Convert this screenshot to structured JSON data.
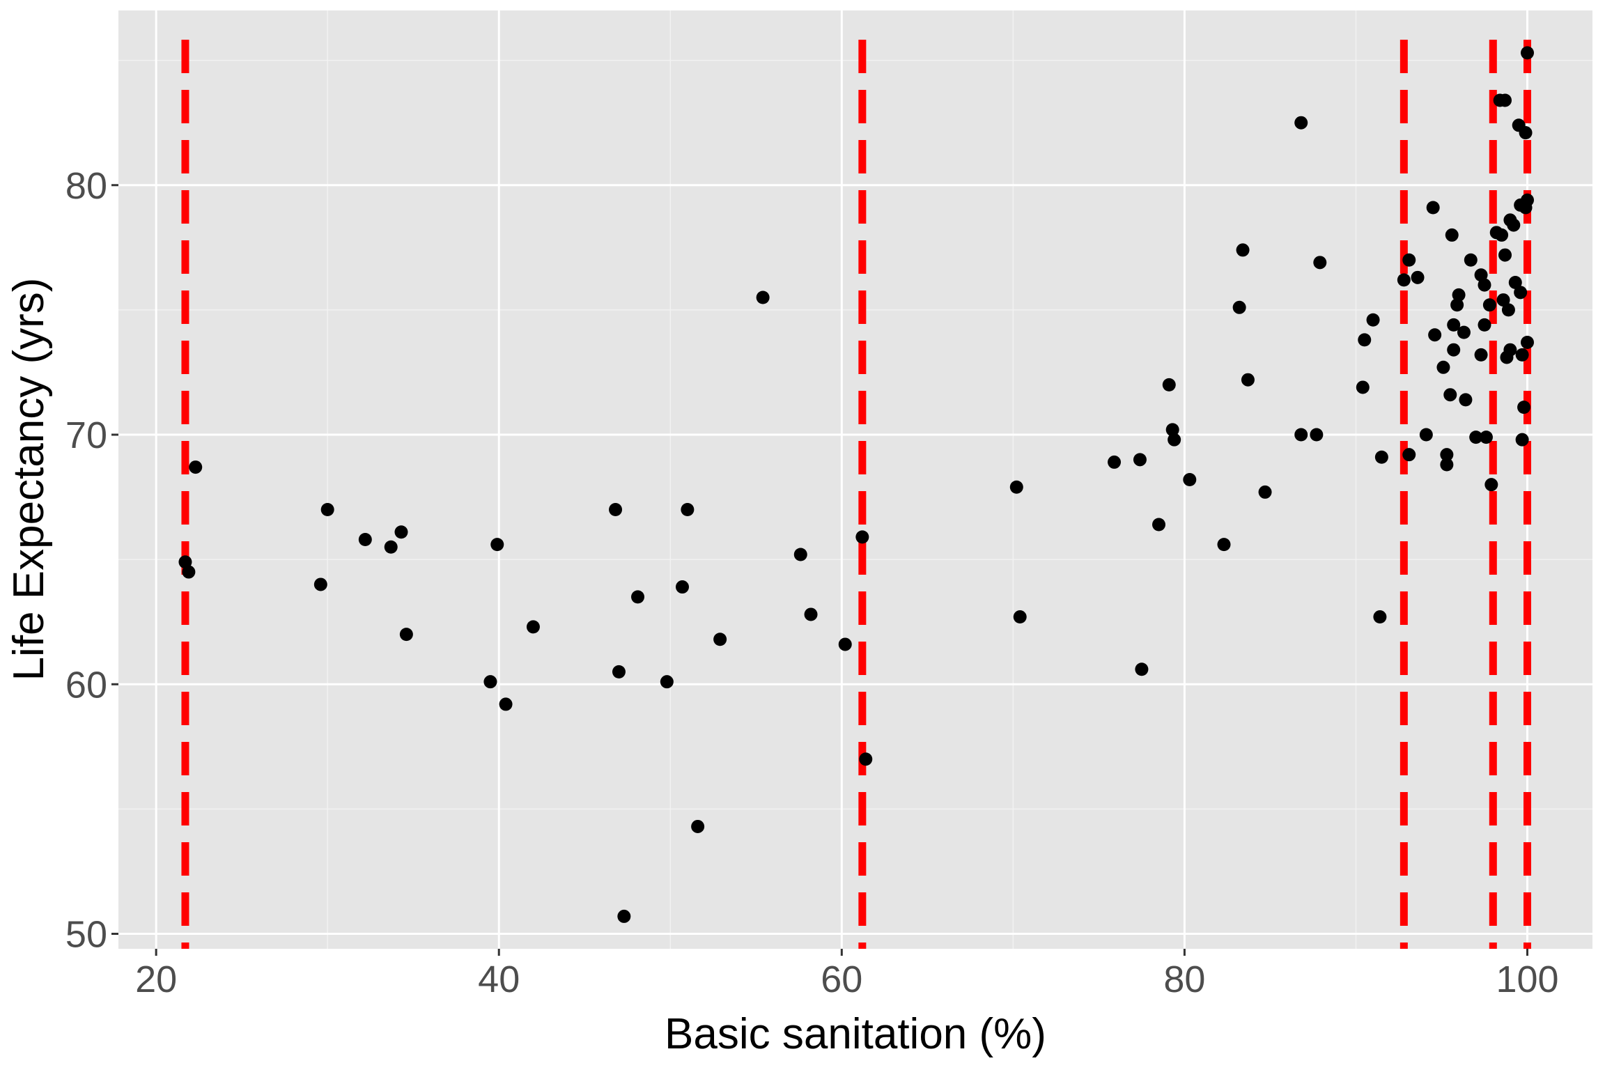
{
  "chart_data": {
    "type": "scatter",
    "title": "",
    "xlabel": "Basic sanitation (%)",
    "ylabel": "Life Expectancy (yrs)",
    "xlim": [
      17.8,
      103.8
    ],
    "ylim": [
      49.4,
      87.0
    ],
    "xticks": [
      20,
      40,
      60,
      80,
      100
    ],
    "xtick_labels": [
      "20",
      "40",
      "60",
      "80",
      "100"
    ],
    "yticks": [
      50,
      60,
      70,
      80
    ],
    "ytick_labels": [
      "50",
      "60",
      "70",
      "80"
    ],
    "grid": true,
    "point_color": "#000000",
    "vline_color": "#ff0000",
    "background": "#e5e5e5",
    "vlines": [
      21.7,
      61.2,
      92.8,
      98.0,
      100.0
    ],
    "points": [
      [
        21.7,
        64.9
      ],
      [
        21.9,
        64.5
      ],
      [
        22.3,
        68.7
      ],
      [
        29.6,
        64.0
      ],
      [
        30.0,
        67.0
      ],
      [
        32.2,
        65.8
      ],
      [
        33.7,
        65.5
      ],
      [
        34.3,
        66.1
      ],
      [
        34.6,
        62.0
      ],
      [
        39.5,
        60.1
      ],
      [
        39.9,
        65.6
      ],
      [
        40.4,
        59.2
      ],
      [
        42.0,
        62.3
      ],
      [
        46.8,
        67.0
      ],
      [
        47.0,
        60.5
      ],
      [
        47.3,
        50.7
      ],
      [
        48.1,
        63.5
      ],
      [
        49.8,
        60.1
      ],
      [
        50.7,
        63.9
      ],
      [
        51.0,
        67.0
      ],
      [
        51.6,
        54.3
      ],
      [
        52.9,
        61.8
      ],
      [
        55.4,
        75.5
      ],
      [
        57.6,
        65.2
      ],
      [
        58.2,
        62.8
      ],
      [
        60.2,
        61.6
      ],
      [
        61.2,
        65.9
      ],
      [
        61.4,
        57.0
      ],
      [
        70.2,
        67.9
      ],
      [
        70.4,
        62.7
      ],
      [
        75.9,
        68.9
      ],
      [
        77.4,
        69.0
      ],
      [
        77.5,
        60.6
      ],
      [
        78.5,
        66.4
      ],
      [
        79.1,
        72.0
      ],
      [
        79.3,
        70.2
      ],
      [
        79.4,
        69.8
      ],
      [
        80.3,
        68.2
      ],
      [
        82.3,
        65.6
      ],
      [
        83.2,
        75.1
      ],
      [
        83.4,
        77.4
      ],
      [
        83.7,
        72.2
      ],
      [
        84.7,
        67.7
      ],
      [
        86.8,
        82.5
      ],
      [
        86.8,
        70.0
      ],
      [
        87.7,
        70.0
      ],
      [
        87.9,
        76.9
      ],
      [
        90.4,
        71.9
      ],
      [
        90.5,
        73.8
      ],
      [
        91.0,
        74.6
      ],
      [
        91.4,
        62.7
      ],
      [
        91.5,
        69.1
      ],
      [
        92.8,
        76.2
      ],
      [
        93.1,
        77.0
      ],
      [
        93.1,
        69.2
      ],
      [
        93.6,
        76.3
      ],
      [
        94.1,
        70.0
      ],
      [
        94.5,
        79.1
      ],
      [
        94.6,
        74.0
      ],
      [
        95.1,
        72.7
      ],
      [
        95.3,
        69.2
      ],
      [
        95.3,
        68.8
      ],
      [
        95.5,
        71.6
      ],
      [
        95.6,
        78.0
      ],
      [
        95.7,
        74.4
      ],
      [
        95.7,
        73.4
      ],
      [
        95.9,
        75.2
      ],
      [
        96.0,
        75.6
      ],
      [
        96.3,
        74.1
      ],
      [
        96.4,
        71.4
      ],
      [
        96.7,
        77.0
      ],
      [
        97.0,
        69.9
      ],
      [
        97.3,
        76.4
      ],
      [
        97.3,
        73.2
      ],
      [
        97.5,
        74.4
      ],
      [
        97.5,
        76.0
      ],
      [
        97.6,
        69.9
      ],
      [
        97.8,
        75.2
      ],
      [
        97.9,
        68.0
      ],
      [
        98.2,
        78.1
      ],
      [
        98.4,
        83.4
      ],
      [
        98.5,
        78.0
      ],
      [
        98.6,
        75.4
      ],
      [
        98.7,
        77.2
      ],
      [
        98.7,
        83.4
      ],
      [
        98.8,
        73.1
      ],
      [
        98.9,
        75.0
      ],
      [
        99.0,
        73.4
      ],
      [
        99.0,
        78.6
      ],
      [
        99.2,
        78.4
      ],
      [
        99.3,
        76.1
      ],
      [
        99.5,
        82.4
      ],
      [
        99.6,
        79.2
      ],
      [
        99.6,
        75.7
      ],
      [
        99.7,
        73.2
      ],
      [
        99.7,
        69.8
      ],
      [
        99.8,
        71.1
      ],
      [
        99.9,
        79.1
      ],
      [
        99.9,
        82.1
      ],
      [
        100.0,
        85.3
      ],
      [
        100.0,
        79.4
      ],
      [
        100.0,
        73.7
      ]
    ]
  }
}
